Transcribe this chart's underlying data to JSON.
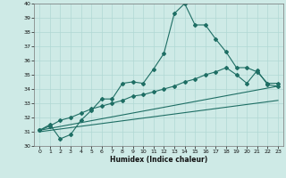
{
  "title": "",
  "xlabel": "Humidex (Indice chaleur)",
  "xlim": [
    -0.5,
    23.5
  ],
  "ylim": [
    30,
    40
  ],
  "yticks": [
    30,
    31,
    32,
    33,
    34,
    35,
    36,
    37,
    38,
    39,
    40
  ],
  "xticks": [
    0,
    1,
    2,
    3,
    4,
    5,
    6,
    7,
    8,
    9,
    10,
    11,
    12,
    13,
    14,
    15,
    16,
    17,
    18,
    19,
    20,
    21,
    22,
    23
  ],
  "bg_color": "#ceeae6",
  "grid_color": "#b0d8d4",
  "line_color": "#1e6e64",
  "series1_x": [
    0,
    1,
    2,
    3,
    4,
    5,
    6,
    7,
    8,
    9,
    10,
    11,
    12,
    13,
    14,
    15,
    16,
    17,
    18,
    19,
    20,
    21,
    22,
    23
  ],
  "series1_y": [
    31.1,
    31.5,
    30.5,
    30.8,
    31.8,
    32.5,
    33.3,
    33.3,
    34.4,
    34.5,
    34.4,
    35.4,
    36.5,
    39.3,
    40.0,
    38.5,
    38.5,
    37.5,
    36.6,
    35.5,
    35.5,
    35.2,
    34.4,
    34.4
  ],
  "series2_x": [
    0,
    1,
    2,
    3,
    4,
    5,
    6,
    7,
    8,
    9,
    10,
    11,
    12,
    13,
    14,
    15,
    16,
    17,
    18,
    19,
    20,
    21,
    22,
    23
  ],
  "series2_y": [
    31.1,
    31.4,
    31.8,
    32.0,
    32.3,
    32.6,
    32.8,
    33.0,
    33.2,
    33.5,
    33.6,
    33.8,
    34.0,
    34.2,
    34.5,
    34.7,
    35.0,
    35.2,
    35.5,
    35.0,
    34.4,
    35.3,
    34.3,
    34.2
  ],
  "series3_x": [
    0,
    23
  ],
  "series3_y": [
    31.1,
    34.2
  ],
  "series4_x": [
    0,
    23
  ],
  "series4_y": [
    31.0,
    33.2
  ]
}
